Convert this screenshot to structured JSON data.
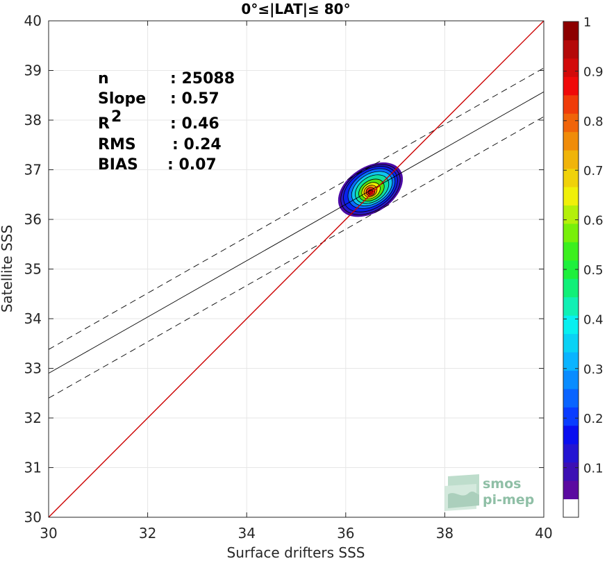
{
  "chart_data": {
    "type": "scatter",
    "title": "0°≤|LAT|≤ 80°",
    "xlabel": "Surface drifters SSS",
    "ylabel": "Satellite SSS",
    "xlim": [
      30,
      40
    ],
    "ylim": [
      30,
      40
    ],
    "xticks": [
      "30",
      "32",
      "34",
      "36",
      "38",
      "40"
    ],
    "yticks": [
      "30",
      "31",
      "32",
      "33",
      "34",
      "35",
      "36",
      "37",
      "38",
      "39",
      "40"
    ],
    "grid": true,
    "stats": [
      {
        "label": "n",
        "value": ": 25088"
      },
      {
        "label": "Slope",
        "value": ": 0.57"
      },
      {
        "label": "R",
        "sup": "2",
        "value": ": 0.46"
      },
      {
        "label": "RMS",
        "value": ": 0.24"
      },
      {
        "label": "BIAS",
        "value": ": 0.07"
      }
    ],
    "identity_line": {
      "x": [
        30,
        40
      ],
      "y": [
        30,
        40
      ],
      "color": "#cc0000"
    },
    "regression_line": {
      "x": [
        30,
        40
      ],
      "y": [
        32.9,
        38.57
      ],
      "color": "#000000"
    },
    "regression_bounds": [
      {
        "x": [
          30,
          40
        ],
        "y": [
          33.38,
          39.05
        ]
      },
      {
        "x": [
          30,
          40
        ],
        "y": [
          32.4,
          38.07
        ]
      }
    ],
    "density_contours": {
      "center": [
        36.5,
        36.55
      ],
      "levels": [
        {
          "level": 0.05,
          "rx": 0.72,
          "ry": 0.5,
          "dx": 0.0,
          "dy": 0.05,
          "color": "#4b0aa6"
        },
        {
          "level": 0.1,
          "rx": 0.66,
          "ry": 0.46,
          "dx": 0.0,
          "dy": 0.05,
          "color": "#2a18c8"
        },
        {
          "level": 0.15,
          "rx": 0.6,
          "ry": 0.42,
          "dx": 0.0,
          "dy": 0.06,
          "color": "#0a22ee"
        },
        {
          "level": 0.25,
          "rx": 0.52,
          "ry": 0.37,
          "dx": 0.02,
          "dy": 0.07,
          "color": "#0a6cff"
        },
        {
          "level": 0.35,
          "rx": 0.45,
          "ry": 0.32,
          "dx": 0.03,
          "dy": 0.07,
          "color": "#10c4f0"
        },
        {
          "level": 0.45,
          "rx": 0.37,
          "ry": 0.27,
          "dx": 0.03,
          "dy": 0.06,
          "color": "#10e0a0"
        },
        {
          "level": 0.55,
          "rx": 0.28,
          "ry": 0.21,
          "dx": 0.02,
          "dy": 0.04,
          "color": "#55e010"
        },
        {
          "level": 0.65,
          "rx": 0.2,
          "ry": 0.16,
          "dx": 0.01,
          "dy": 0.03,
          "color": "#f2f200"
        },
        {
          "level": 0.75,
          "rx": 0.14,
          "ry": 0.12,
          "dx": 0.0,
          "dy": 0.02,
          "color": "#ff9a00"
        },
        {
          "level": 0.85,
          "rx": 0.09,
          "ry": 0.09,
          "dx": 0.0,
          "dy": 0.01,
          "color": "#f03010"
        },
        {
          "level": 0.95,
          "rx": 0.05,
          "ry": 0.05,
          "dx": 0.0,
          "dy": 0.0,
          "color": "#b80000"
        }
      ]
    },
    "colorbar": {
      "range": [
        0,
        1
      ],
      "ticks": [
        "0.1",
        "0.2",
        "0.3",
        "0.4",
        "0.5",
        "0.6",
        "0.7",
        "0.8",
        "0.9",
        "1"
      ],
      "colors": [
        "#ffffff",
        "#5b0aa0",
        "#3c10b4",
        "#2414d2",
        "#0a0ef0",
        "#0a3cff",
        "#0a64ff",
        "#0a8cff",
        "#0ab4ff",
        "#0ad2f5",
        "#08f0f0",
        "#10f0b4",
        "#10f078",
        "#1ef03c",
        "#3cf01e",
        "#78f00a",
        "#b4f00a",
        "#f0f00a",
        "#f0d20a",
        "#f0b40a",
        "#f08c0a",
        "#f0640a",
        "#f03c0a",
        "#f00a0a",
        "#d20a0a",
        "#b40a0a",
        "#8c0000"
      ]
    }
  },
  "watermark": {
    "line1": "smos",
    "line2": "pi-mep",
    "color": "#8fbfa6"
  }
}
